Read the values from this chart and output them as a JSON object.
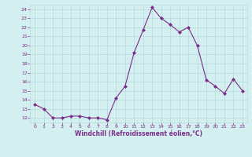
{
  "x": [
    0,
    1,
    2,
    3,
    4,
    5,
    6,
    7,
    8,
    9,
    10,
    11,
    12,
    13,
    14,
    15,
    16,
    17,
    18,
    19,
    20,
    21,
    22,
    23
  ],
  "y": [
    13.5,
    13.0,
    12.0,
    12.0,
    12.2,
    12.2,
    12.0,
    12.0,
    11.8,
    14.2,
    15.5,
    19.2,
    21.7,
    24.2,
    23.0,
    22.3,
    21.5,
    22.0,
    20.0,
    16.2,
    15.5,
    14.7,
    16.3,
    15.0
  ],
  "line_color": "#7b2d8b",
  "marker": "D",
  "marker_size": 2,
  "bg_color": "#d4efef",
  "grid_color": "#b8dcdc",
  "xlabel": "Windchill (Refroidissement éolien,°C)",
  "xlabel_color": "#7b2d8b",
  "tick_color": "#7b2d8b",
  "ylim_min": 11.5,
  "ylim_max": 24.5,
  "yticks": [
    12,
    13,
    14,
    15,
    16,
    17,
    18,
    19,
    20,
    21,
    22,
    23,
    24
  ],
  "xlim_min": -0.5,
  "xlim_max": 23.5,
  "xticks": [
    0,
    1,
    2,
    3,
    4,
    5,
    6,
    7,
    8,
    9,
    10,
    11,
    12,
    13,
    14,
    15,
    16,
    17,
    18,
    19,
    20,
    21,
    22,
    23
  ]
}
